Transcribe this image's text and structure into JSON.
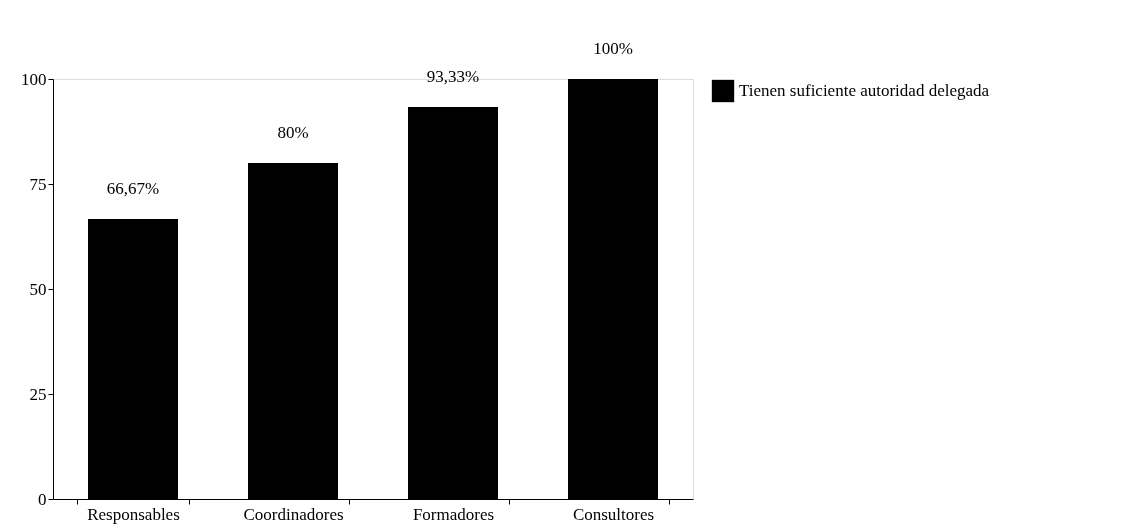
{
  "chart_data": {
    "type": "bar",
    "categories": [
      "Responsables",
      "Coordinadores",
      "Formadores",
      "Consultores"
    ],
    "series": [
      {
        "name": "Tienen suficiente autoridad delegada",
        "color": "#000000",
        "values": [
          66.67,
          80,
          93.33,
          100
        ],
        "value_labels": [
          "66,67%",
          "80%",
          "93,33%",
          "100%"
        ]
      }
    ],
    "ylim": [
      0,
      100
    ],
    "yticks": [
      0,
      25,
      50,
      75,
      100
    ],
    "grid": false,
    "legend": "right"
  }
}
